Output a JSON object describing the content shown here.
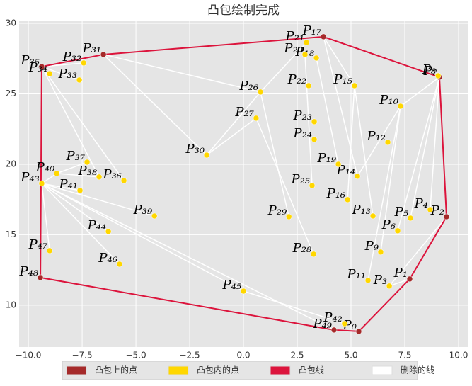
{
  "chart_data": {
    "type": "scatter",
    "title": "凸包绘制完成",
    "xlim": [
      -10.43,
      10.46
    ],
    "ylim": [
      7.03,
      30.15
    ],
    "xticks": [
      {
        "value": -10,
        "label": "−10.0"
      },
      {
        "value": -7.5,
        "label": "−7.5"
      },
      {
        "value": -5,
        "label": "−5.0"
      },
      {
        "value": -2.5,
        "label": "−2.5"
      },
      {
        "value": 0,
        "label": "0.0"
      },
      {
        "value": 2.5,
        "label": "2.5"
      },
      {
        "value": 5,
        "label": "5.0"
      },
      {
        "value": 7.5,
        "label": "7.5"
      },
      {
        "value": 10,
        "label": "10.0"
      }
    ],
    "yticks": [
      10,
      15,
      20,
      25,
      30
    ],
    "grid": true,
    "deleted_lines": {
      "name": "删除的线",
      "color": "#ffffff",
      "segments": [
        [
          -9.38,
          18.64,
          -8.68,
          19.35
        ],
        [
          -9.38,
          18.64,
          -7.6,
          18.14
        ],
        [
          -9.38,
          18.64,
          -4.14,
          16.33
        ],
        [
          -9.38,
          18.64,
          -6.28,
          15.23
        ],
        [
          -9.38,
          18.64,
          -5.76,
          12.91
        ],
        [
          -9.38,
          18.64,
          0.0,
          11.0
        ],
        [
          -9.38,
          18.64,
          4.21,
          8.24
        ],
        [
          -9.38,
          18.64,
          -9.01,
          13.87
        ],
        [
          -8.68,
          19.35,
          -6.71,
          19.1
        ],
        [
          -8.68,
          19.35,
          -7.27,
          20.15
        ],
        [
          -9.38,
          26.93,
          -5.56,
          18.84
        ],
        [
          -9.38,
          26.93,
          -6.71,
          19.1
        ],
        [
          -9.38,
          26.93,
          -7.63,
          25.98
        ],
        [
          -9.38,
          26.93,
          -7.43,
          27.19
        ],
        [
          -6.51,
          27.79,
          -1.71,
          20.65
        ],
        [
          -6.51,
          27.79,
          0.79,
          25.13
        ],
        [
          -1.71,
          20.65,
          0.79,
          25.13
        ],
        [
          -1.71,
          20.65,
          0.59,
          23.27
        ],
        [
          0.79,
          25.13,
          2.93,
          28.64
        ],
        [
          0.79,
          25.13,
          2.11,
          16.28
        ],
        [
          0.59,
          23.27,
          3.26,
          13.62
        ],
        [
          2.86,
          27.79,
          3.19,
          18.49
        ],
        [
          3.39,
          27.54,
          4.41,
          20.0
        ],
        [
          3.72,
          29.05,
          5.16,
          25.58
        ],
        [
          3.72,
          29.05,
          5.3,
          19.15
        ],
        [
          5.16,
          25.58,
          4.84,
          17.49
        ],
        [
          5.16,
          25.58,
          6.02,
          16.33
        ],
        [
          9.11,
          26.18,
          7.3,
          24.12
        ],
        [
          9.11,
          26.18,
          7.17,
          15.28
        ],
        [
          9.11,
          26.18,
          7.76,
          16.18
        ],
        [
          9.11,
          26.18,
          8.68,
          16.78
        ],
        [
          7.3,
          24.12,
          6.38,
          13.77
        ],
        [
          7.3,
          24.12,
          5.79,
          11.76
        ],
        [
          7.3,
          24.12,
          5.3,
          19.15
        ],
        [
          9.44,
          16.28,
          6.78,
          11.36
        ],
        [
          7.73,
          11.86,
          6.78,
          11.36
        ],
        [
          0.0,
          11.0,
          4.7,
          8.69
        ]
      ]
    },
    "hull_line": {
      "name": "凸包线",
      "color": "#dc143c",
      "x": [
        5.36,
        7.73,
        9.44,
        9.11,
        3.72,
        -6.51,
        -9.38,
        -9.44,
        4.21,
        5.36
      ],
      "y": [
        8.14,
        11.86,
        16.28,
        26.18,
        29.05,
        27.79,
        26.93,
        11.96,
        8.24,
        8.14
      ]
    },
    "series": [
      {
        "name": "凸包上的点",
        "color": "#a52a2a",
        "labels": [
          "P₀",
          "P₁",
          "P₂",
          "P₇",
          "P₁₇",
          "P₃₁",
          "P₃₅",
          "P₄₈",
          "P₄₉"
        ],
        "x": [
          5.36,
          7.73,
          9.44,
          9.11,
          3.72,
          -6.51,
          -9.38,
          -9.44,
          4.21
        ],
        "y": [
          8.14,
          11.86,
          16.28,
          26.18,
          29.05,
          27.79,
          26.93,
          11.96,
          8.24
        ]
      },
      {
        "name": "凸包内的点",
        "color": "#ffd700",
        "labels": [
          "P₃",
          "P₄",
          "P₅",
          "P₆",
          "P₈",
          "P₉",
          "P₁₀",
          "P₁₁",
          "P₁₂",
          "P₁₃",
          "P₁₄",
          "P₁₅",
          "P₁₆",
          "P₁₈",
          "P₁₉",
          "P₂₀",
          "P₂₁",
          "P₂₂",
          "P₂₃",
          "P₂₄",
          "P₂₅",
          "P₂₆",
          "P₂₇",
          "P₂₈",
          "P₂₉",
          "P₃₀",
          "P₃₂",
          "P₃₃",
          "P₃₄",
          "P₃₆",
          "P₃₇",
          "P₃₈",
          "P₃₉",
          "P₄₀",
          "P₄₁",
          "P₄₂",
          "P₄₃",
          "P₄₄",
          "P₄₅",
          "P₄₆",
          "P₄₇"
        ],
        "x": [
          6.78,
          8.68,
          7.76,
          7.17,
          9.05,
          6.38,
          7.3,
          5.79,
          6.71,
          6.02,
          5.3,
          5.16,
          4.84,
          3.39,
          4.41,
          2.86,
          2.93,
          3.03,
          3.29,
          3.29,
          3.19,
          0.79,
          0.59,
          3.26,
          2.11,
          -1.71,
          -7.43,
          -7.63,
          -9.01,
          -5.56,
          -7.27,
          -6.71,
          -4.14,
          -8.68,
          -7.6,
          4.7,
          -9.38,
          -6.28,
          0.0,
          -5.76,
          -9.01
        ],
        "y": [
          11.36,
          16.78,
          16.18,
          15.28,
          26.28,
          13.77,
          24.12,
          11.76,
          21.56,
          16.33,
          19.15,
          25.58,
          17.49,
          27.54,
          20.0,
          27.79,
          28.64,
          25.58,
          23.02,
          21.76,
          18.49,
          25.13,
          23.27,
          13.62,
          16.28,
          20.65,
          27.19,
          25.98,
          26.43,
          18.84,
          20.15,
          19.1,
          16.33,
          19.35,
          18.14,
          8.69,
          18.64,
          15.23,
          11.0,
          12.91,
          13.87
        ]
      }
    ]
  }
}
